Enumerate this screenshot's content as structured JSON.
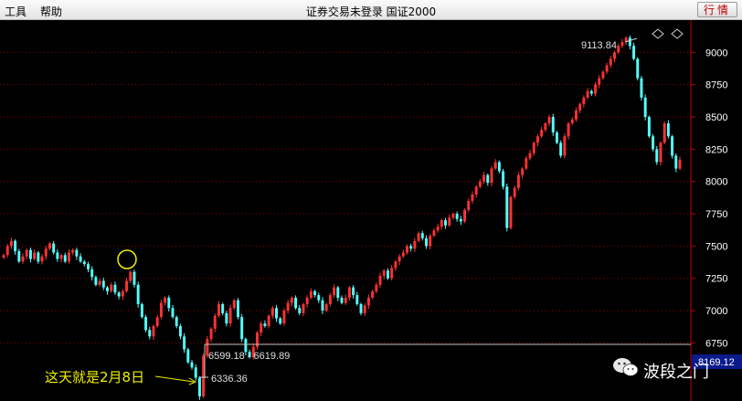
{
  "menu": {
    "tools": "工具",
    "help": "帮助"
  },
  "window_title": "证券交易未登录  国证2000",
  "quote_button": "行情",
  "watermark_text": "波段之门",
  "annotation_text": "这天就是2月8日",
  "chart_data": {
    "type": "candlestick",
    "ylim": [
      6300,
      9250
    ],
    "y_ticks": [
      "9000",
      "8750",
      "8500",
      "8250",
      "8000",
      "7750",
      "7500",
      "7250",
      "7000",
      "6750"
    ],
    "current_price_label": "8169.12",
    "high_label": "9113.84",
    "low_label": "6336.36",
    "range_label": "6599.18 - 6619.89",
    "range_low": 6599.18,
    "range_high": 6619.89,
    "colors": {
      "up": "#ff3232",
      "down": "#54ffff",
      "axis": "#c00000",
      "grid": "#8b0000",
      "annotation": "#f0f000",
      "range_line": "#bfbfbf"
    },
    "closes": [
      7430,
      7500,
      7540,
      7460,
      7380,
      7420,
      7470,
      7400,
      7450,
      7380,
      7420,
      7480,
      7520,
      7450,
      7400,
      7430,
      7380,
      7450,
      7470,
      7420,
      7380,
      7360,
      7320,
      7260,
      7200,
      7230,
      7180,
      7150,
      7200,
      7140,
      7110,
      7150,
      7230,
      7300,
      7200,
      7050,
      6950,
      6850,
      6800,
      6880,
      6950,
      7060,
      7100,
      7020,
      6950,
      6880,
      6800,
      6700,
      6600,
      6560,
      6480,
      6336,
      6650,
      6780,
      6860,
      6960,
      7050,
      6980,
      6900,
      7020,
      7080,
      6950,
      6780,
      6680,
      6640,
      6720,
      6830,
      6900,
      6880,
      6960,
      7020,
      6940,
      6900,
      7000,
      7060,
      7100,
      7020,
      6980,
      7050,
      7100,
      7150,
      7120,
      7080,
      7000,
      7050,
      7120,
      7180,
      7100,
      7060,
      7100,
      7180,
      7120,
      7050,
      6980,
      7040,
      7100,
      7150,
      7200,
      7270,
      7310,
      7250,
      7330,
      7380,
      7420,
      7450,
      7500,
      7480,
      7540,
      7600,
      7560,
      7500,
      7580,
      7620,
      7650,
      7700,
      7660,
      7720,
      7750,
      7710,
      7690,
      7780,
      7850,
      7900,
      7960,
      8000,
      8050,
      7990,
      8100,
      8150,
      8080,
      7960,
      7640,
      7880,
      7950,
      8050,
      8100,
      8180,
      8220,
      8300,
      8350,
      8400,
      8450,
      8500,
      8380,
      8300,
      8200,
      8350,
      8450,
      8480,
      8550,
      8600,
      8650,
      8700,
      8680,
      8750,
      8800,
      8850,
      8900,
      8950,
      9000,
      9050,
      9080,
      9113,
      9050,
      8950,
      8800,
      8650,
      8500,
      8350,
      8250,
      8150,
      8300,
      8450,
      8350,
      8200,
      8100,
      8169
    ]
  }
}
